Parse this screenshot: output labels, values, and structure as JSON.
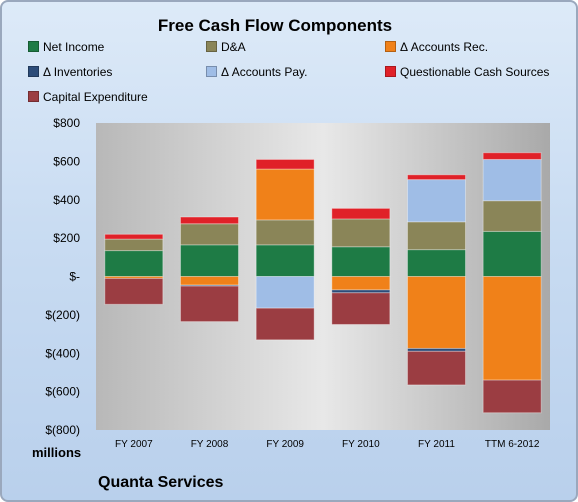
{
  "chart_data": {
    "type": "bar",
    "stacked": true,
    "title": "Free Cash Flow Components",
    "units_label": "millions",
    "caption": "Quanta Services",
    "categories": [
      "FY 2007",
      "FY 2008",
      "FY 2009",
      "FY 2010",
      "FY 2011",
      "TTM 6-2012"
    ],
    "y_tick_labels": [
      "$800",
      "$600",
      "$400",
      "$200",
      "$-",
      "$(200)",
      "$(400)",
      "$(600)",
      "$(800)"
    ],
    "ylim": [
      -800,
      800
    ],
    "grid": false,
    "legend_position": "top",
    "series": [
      {
        "name": "Net Income",
        "color": "#1e7b45",
        "values": [
          135,
          165,
          165,
          155,
          140,
          235
        ]
      },
      {
        "name": "D&A",
        "color": "#8a8558",
        "values": [
          60,
          110,
          130,
          145,
          145,
          160
        ]
      },
      {
        "name": "Δ Accounts Rec.",
        "color": "#f08119",
        "values": [
          -10,
          -45,
          265,
          -70,
          -375,
          -540
        ]
      },
      {
        "name": "Δ Inventories",
        "color": "#2c4c79",
        "values": [
          0,
          -5,
          0,
          -15,
          -15,
          0
        ]
      },
      {
        "name": "Δ Accounts Pay.",
        "color": "#9fbde6",
        "values": [
          0,
          0,
          -165,
          0,
          220,
          215
        ]
      },
      {
        "name": "Questionable Cash Sources",
        "color": "#e02128",
        "values": [
          25,
          35,
          50,
          55,
          25,
          35
        ]
      },
      {
        "name": "Capital Expenditure",
        "color": "#9b3d42",
        "values": [
          -135,
          -185,
          -165,
          -165,
          -175,
          -170
        ]
      }
    ]
  }
}
